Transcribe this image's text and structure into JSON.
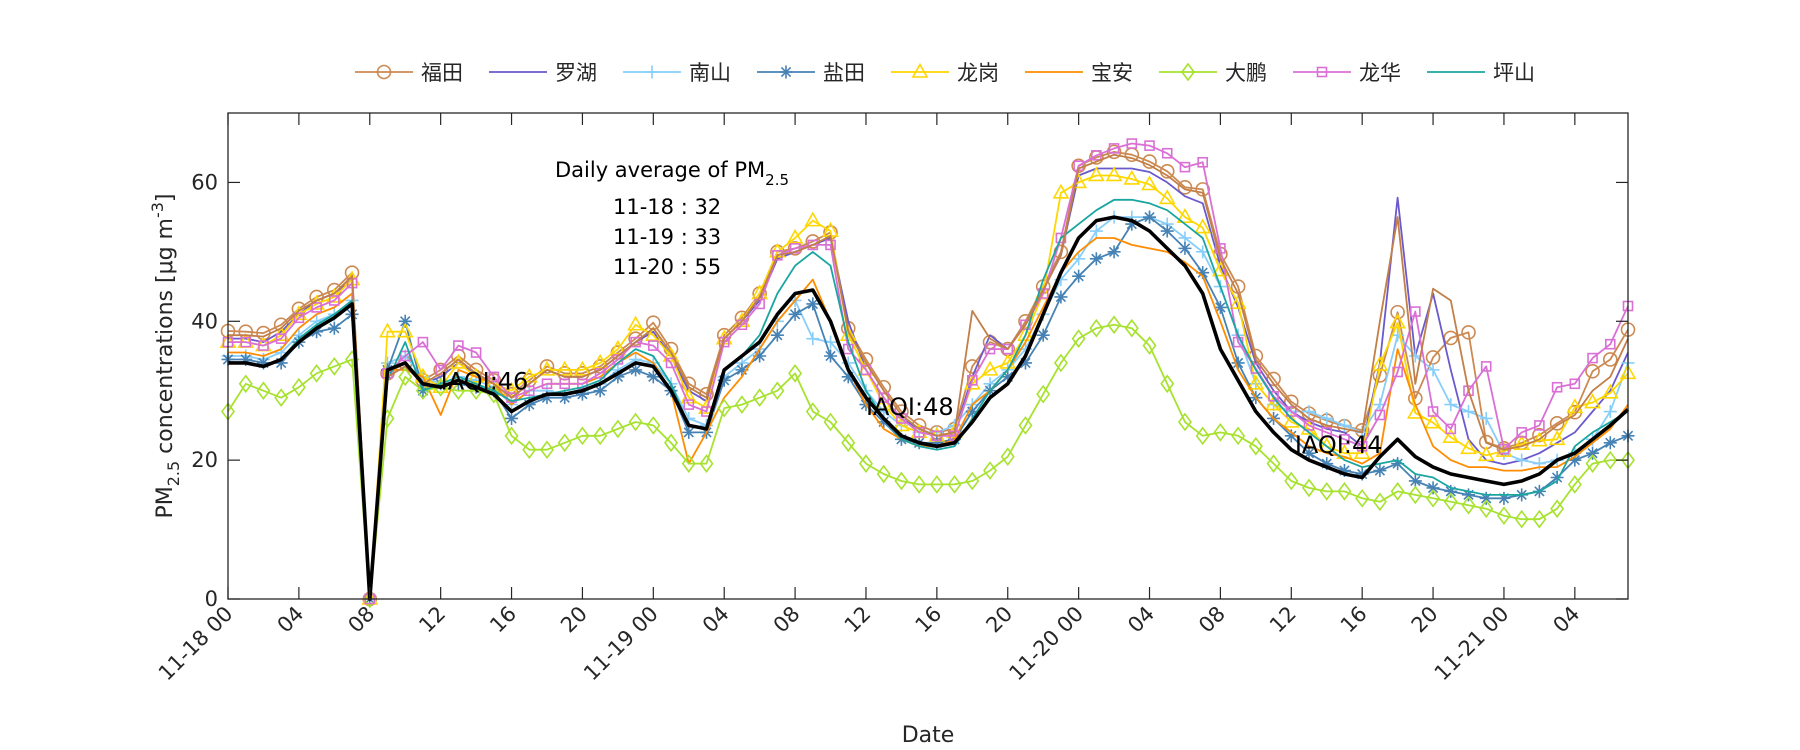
{
  "chart_data": {
    "type": "line",
    "xlabel": "Date",
    "ylabel": {
      "pre": "PM",
      "sub": "2.5",
      "mid": " concentrations [",
      "unit": "μg m",
      "sup": "-3",
      "post": "]"
    },
    "ylim": [
      0,
      70
    ],
    "yticks": [
      0,
      20,
      40,
      60
    ],
    "xlim_hours": [
      0,
      79
    ],
    "x_start": "11-18 00",
    "x_step": "1 hour",
    "xticks": [
      {
        "hour": 0,
        "label": "11-18 00"
      },
      {
        "hour": 4,
        "label": "04"
      },
      {
        "hour": 8,
        "label": "08"
      },
      {
        "hour": 12,
        "label": "12"
      },
      {
        "hour": 16,
        "label": "16"
      },
      {
        "hour": 20,
        "label": "20"
      },
      {
        "hour": 24,
        "label": "11-19 00"
      },
      {
        "hour": 28,
        "label": "04"
      },
      {
        "hour": 32,
        "label": "08"
      },
      {
        "hour": 36,
        "label": "12"
      },
      {
        "hour": 40,
        "label": "16"
      },
      {
        "hour": 44,
        "label": "20"
      },
      {
        "hour": 48,
        "label": "11-20 00"
      },
      {
        "hour": 52,
        "label": "04"
      },
      {
        "hour": 56,
        "label": "08"
      },
      {
        "hour": 60,
        "label": "12"
      },
      {
        "hour": 64,
        "label": "16"
      },
      {
        "hour": 68,
        "label": "20"
      },
      {
        "hour": 72,
        "label": "11-21 00"
      },
      {
        "hour": 76,
        "label": "04"
      }
    ],
    "grid": false,
    "legend_placement": "top-center, horizontal, outside",
    "series": [
      {
        "name": "福田",
        "color": "#cc8a52",
        "marker": "circle",
        "values": [
          38.6,
          38.5,
          38.3,
          39.5,
          41.8,
          43.5,
          44.5,
          47,
          0,
          32.5,
          34,
          31.5,
          33,
          35,
          33,
          31.5,
          29.5,
          31.5,
          33.5,
          32.5,
          32.5,
          33.5,
          35.5,
          37.5,
          39.8,
          36,
          31,
          29.5,
          38,
          40.5,
          44,
          50,
          50.5,
          51.5,
          52.8,
          39,
          34.5,
          30.5,
          27,
          25,
          24,
          24.5,
          33.5,
          37,
          36,
          40,
          45,
          50,
          62.4,
          63.6,
          64.4,
          64,
          63,
          61.6,
          59.3,
          59,
          49.7,
          45,
          35,
          31.7,
          28.4,
          26.7,
          25.7,
          24.9,
          24.3,
          32.2,
          41.3,
          28.9,
          34.8,
          37.6,
          38.4,
          22.6,
          21.7,
          22.5,
          23.6,
          25.3,
          26.9,
          32.8,
          34.5,
          38.8
        ]
      },
      {
        "name": "罗湖",
        "color": "#6a5acd",
        "marker": "none",
        "values": [
          37.5,
          37.5,
          37,
          38.5,
          41,
          43,
          44,
          46,
          0,
          33,
          34,
          31,
          32,
          34,
          32.5,
          31,
          29,
          31,
          33,
          32,
          32,
          33,
          35,
          37,
          38.5,
          35,
          30,
          28.5,
          37.5,
          40,
          43,
          49,
          50,
          51,
          52,
          40,
          33,
          29,
          26,
          24.5,
          23.5,
          24,
          32,
          38,
          36,
          39.5,
          44.5,
          49.5,
          61,
          62,
          62,
          62,
          61.5,
          60,
          58,
          57,
          48,
          42,
          34,
          30,
          27,
          25.5,
          24.5,
          24,
          22,
          34,
          57.8,
          35,
          44,
          33,
          23,
          20,
          19.4,
          20,
          21,
          22.5,
          24,
          27,
          30,
          35.5
        ]
      },
      {
        "name": "南山",
        "color": "#87cefa",
        "marker": "plus",
        "values": [
          35,
          35,
          34.5,
          35.5,
          38,
          40,
          41,
          43,
          0,
          34,
          35,
          32,
          31,
          32,
          31.5,
          30.5,
          28,
          30,
          30,
          29.5,
          30,
          31,
          33,
          34.5,
          34,
          31,
          26,
          25,
          32,
          34,
          36,
          40,
          43,
          37.5,
          37,
          34,
          30,
          27,
          25,
          24,
          24,
          25,
          28,
          31,
          33,
          36,
          41,
          46,
          49,
          53,
          55,
          55,
          55,
          54,
          52,
          50,
          45,
          38,
          31,
          28,
          27,
          27,
          26,
          25,
          24,
          28,
          38,
          35,
          33,
          28,
          27,
          26,
          21,
          20,
          19.5,
          20,
          21,
          23,
          27,
          34
        ]
      },
      {
        "name": "盐田",
        "color": "#4682b4",
        "marker": "asterisk",
        "values": [
          34.5,
          34.5,
          34,
          34,
          37,
          38.5,
          39,
          41,
          0,
          33,
          40,
          30,
          31,
          31,
          30.5,
          30,
          26,
          28,
          29,
          29,
          29.5,
          30,
          32,
          33,
          32,
          30,
          24,
          24,
          31.5,
          33,
          35,
          38,
          41,
          42.5,
          35,
          32,
          28,
          25.5,
          23,
          22.5,
          22.5,
          23,
          27,
          30,
          32,
          34,
          38,
          43.5,
          46.5,
          49,
          50,
          54,
          55,
          53,
          50.5,
          47,
          42,
          34,
          29,
          26,
          23.5,
          21,
          19.5,
          18.5,
          18,
          18.5,
          19.5,
          17,
          16,
          15.5,
          15,
          14.5,
          14.5,
          15,
          15.5,
          17.5,
          20,
          21,
          22.5,
          23.5
        ]
      },
      {
        "name": "龙岗",
        "color": "#ffd700",
        "marker": "triangle",
        "values": [
          37,
          37,
          36.5,
          38,
          41,
          42.5,
          43.5,
          46,
          0,
          38.5,
          38.5,
          32,
          30.5,
          34,
          32,
          31,
          30,
          32,
          33,
          33,
          33,
          34,
          36,
          39.5,
          38,
          35,
          29,
          27.5,
          37.5,
          40,
          44,
          50,
          52,
          54.5,
          53,
          38,
          33,
          28,
          25,
          24,
          23.5,
          24,
          31,
          33,
          34,
          38,
          44,
          58.5,
          60,
          61,
          61,
          60.5,
          59.7,
          57.7,
          55,
          53.5,
          47.3,
          42.6,
          31,
          28,
          25.5,
          24.5,
          22,
          21,
          21,
          33.7,
          39.8,
          26.8,
          25.4,
          23.3,
          21.7,
          20.7,
          21.3,
          22.3,
          22.8,
          23,
          27.6,
          28.3,
          29.7,
          32.5
        ]
      },
      {
        "name": "宝安",
        "color": "#ff8c00",
        "marker": "none",
        "values": [
          35.5,
          35.5,
          35,
          36,
          39,
          41,
          42,
          44,
          0,
          33,
          33,
          32,
          26.5,
          33,
          32,
          31,
          28,
          30,
          31,
          31,
          31,
          32,
          34,
          35.5,
          34,
          30,
          19.5,
          24,
          29,
          32,
          36,
          40,
          43,
          46,
          40,
          33,
          28,
          24.5,
          23,
          22,
          22,
          23,
          28,
          30,
          33,
          37,
          42,
          47,
          50,
          52,
          52,
          51,
          50.5,
          50,
          48.5,
          46.5,
          40,
          33,
          29,
          26,
          24,
          22,
          21,
          20.5,
          19.5,
          21,
          36,
          28,
          22,
          20,
          19,
          19,
          18.5,
          18.5,
          19,
          19,
          20.5,
          22.5,
          24.5,
          28
        ]
      },
      {
        "name": "大鹏",
        "color": "#a6e22e",
        "marker": "diamond",
        "values": [
          27,
          31,
          30,
          29,
          30.5,
          32.5,
          33.5,
          34.5,
          0,
          26,
          32,
          30,
          30.5,
          30,
          30,
          29.5,
          23.5,
          21.5,
          21.5,
          22.5,
          23.5,
          23.5,
          24.5,
          25.5,
          25,
          22.5,
          19.5,
          19.5,
          27.5,
          28,
          29,
          30,
          32.5,
          27,
          25.5,
          22.5,
          19.5,
          18,
          17,
          16.5,
          16.5,
          16.5,
          17,
          18.5,
          20.5,
          25,
          29.5,
          34,
          37.5,
          39,
          39.5,
          39,
          36.5,
          31,
          25.5,
          23.5,
          24,
          23.5,
          22,
          19.5,
          17,
          16,
          15.5,
          15.5,
          14.5,
          14,
          15.5,
          15,
          14.5,
          14,
          13.5,
          13,
          12,
          11.5,
          11.5,
          13,
          16.5,
          19.5,
          20,
          20
        ]
      },
      {
        "name": "龙华",
        "color": "#da70d6",
        "marker": "square",
        "values": [
          37,
          37,
          36.5,
          37.5,
          40.5,
          42,
          43,
          45.5,
          0,
          32.5,
          35,
          37,
          33,
          36.5,
          35.5,
          32,
          29,
          30,
          31,
          31,
          31,
          32.5,
          34.5,
          37,
          36.5,
          34,
          28,
          27,
          37,
          39.5,
          42.5,
          49.5,
          50.5,
          51,
          51,
          36,
          33,
          29,
          26,
          24,
          23.5,
          23.5,
          31.5,
          36,
          36,
          39.5,
          44,
          52,
          62.4,
          63.9,
          64.9,
          65.6,
          65.3,
          64.2,
          62.2,
          62.9,
          50.5,
          37,
          33.2,
          29.2,
          27,
          25,
          24,
          23,
          22,
          26.5,
          32.7,
          41.4,
          27,
          24.5,
          30,
          33.5,
          21.6,
          24,
          25,
          30.5,
          31,
          34.7,
          36.7,
          42.2
        ]
      },
      {
        "name": "坪山",
        "color": "#1aa6a0",
        "marker": "none",
        "values": [
          34,
          34,
          33.5,
          34.5,
          37.5,
          39.5,
          41,
          43,
          0,
          31.5,
          37,
          30,
          31,
          32,
          31,
          30,
          28.5,
          29,
          29.5,
          30,
          30.5,
          31.5,
          34,
          36,
          35,
          31,
          25,
          24.5,
          33,
          35,
          38,
          44,
          48,
          50,
          48,
          37,
          30,
          26,
          23,
          22,
          21.5,
          22,
          26,
          30,
          33,
          38,
          46,
          52,
          54,
          56,
          57.5,
          57.5,
          57,
          56,
          54,
          52,
          45,
          38,
          33,
          29,
          26,
          24,
          22,
          20,
          19,
          19.5,
          20,
          18,
          17.5,
          16,
          15.5,
          15,
          15,
          15,
          15.5,
          17,
          22,
          24,
          25.5,
          27
        ]
      },
      {
        "color": "#c27f48",
        "marker": "none",
        "values": [
          38,
          38,
          37.8,
          39,
          41.5,
          43,
          44,
          46.5,
          0,
          32,
          33.5,
          31,
          32.5,
          34.5,
          32.5,
          31,
          29,
          31,
          33,
          32,
          32,
          33,
          35,
          37,
          39,
          35.5,
          30.5,
          29,
          37.5,
          40,
          43.5,
          49.5,
          50,
          51,
          52.3,
          38.5,
          34,
          30,
          26.5,
          24.5,
          23.5,
          24,
          41.5,
          37.5,
          36,
          39.5,
          44.5,
          49.5,
          62,
          63,
          64,
          63.5,
          62.5,
          61,
          59,
          58.5,
          49,
          44,
          34.5,
          31,
          28,
          26,
          25,
          24.5,
          24,
          40,
          55,
          31,
          44.7,
          43,
          30,
          22.5,
          21.5,
          22,
          23,
          25,
          26.5,
          30,
          32,
          37.5
        ]
      },
      {
        "color": "#000000",
        "marker": "none",
        "thick": true,
        "values": [
          34,
          34,
          33.5,
          34.5,
          37,
          39,
          40.5,
          42.5,
          0,
          33,
          34,
          31,
          30.5,
          31.5,
          30.5,
          29.5,
          27,
          28.5,
          29.5,
          29.5,
          30,
          31,
          32.5,
          34,
          33.5,
          30,
          25,
          24.5,
          33,
          35,
          37,
          41,
          44,
          44.5,
          40,
          33,
          29,
          26,
          23.5,
          22.5,
          22,
          22.5,
          25.5,
          29,
          31,
          35,
          41,
          47,
          52,
          54.5,
          55,
          54.5,
          53,
          50.5,
          48,
          44,
          36,
          31.5,
          27,
          24,
          21.5,
          20,
          19,
          18,
          17.5,
          20.5,
          23,
          20.5,
          19,
          18,
          17.5,
          17,
          16.5,
          17,
          18,
          20,
          21,
          23,
          25,
          27.3
        ]
      }
    ],
    "annotations": [
      {
        "text": "IAQI:46",
        "hour": 12,
        "value": 31.5
      },
      {
        "text": "IAQI:48",
        "hour": 36,
        "value": 27.8
      },
      {
        "text": "IAQI:44",
        "hour": 60.2,
        "value": 22.3
      }
    ],
    "text_box": {
      "title": "Daily average of PM",
      "title_sub": "2.5",
      "lines": [
        "11-18 : 32",
        "11-19 : 33",
        "11-20 : 55"
      ]
    }
  }
}
